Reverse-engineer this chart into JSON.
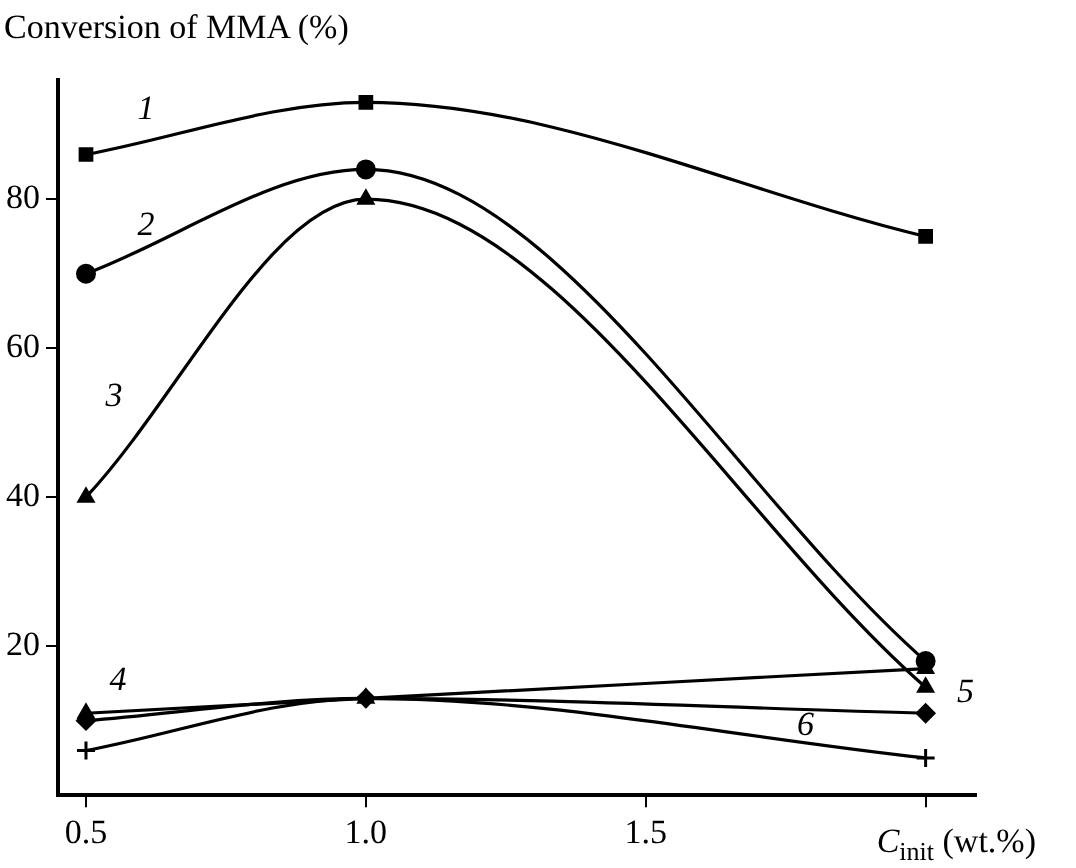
{
  "chart_data": {
    "type": "line",
    "ylabel": "Conversion of MMA (%)",
    "xlabel": "C$_{init}$ (wt.%)",
    "x": [
      0.5,
      1.0,
      2.0
    ],
    "xlim": [
      0.45,
      2.09
    ],
    "xticks": [
      0.5,
      {
        "value": 1.0,
        "label": "1.0"
      },
      1.5,
      {
        "value": 2.0,
        "label": null
      }
    ],
    "ylim": [
      0,
      96
    ],
    "yticks": [
      20,
      40,
      60,
      80
    ],
    "grid": false,
    "legend": false,
    "series": [
      {
        "name": "1",
        "color": "#000000",
        "values": [
          86,
          93,
          75
        ],
        "marker": "square"
      },
      {
        "name": "2",
        "color": "#000000",
        "values": [
          70,
          84,
          18
        ],
        "marker": "circle"
      },
      {
        "name": "3",
        "color": "#000000",
        "values": [
          40,
          80,
          14.5
        ],
        "marker": "triangle"
      },
      {
        "name": "4",
        "color": "#000000",
        "values": [
          11,
          13,
          17
        ],
        "marker": "triangle"
      },
      {
        "name": "5",
        "color": "#000000",
        "values": [
          10,
          13,
          11
        ],
        "marker": "diamond"
      },
      {
        "name": "6",
        "color": "#000000",
        "values": [
          6,
          13,
          5
        ],
        "marker": "cross"
      }
    ]
  }
}
